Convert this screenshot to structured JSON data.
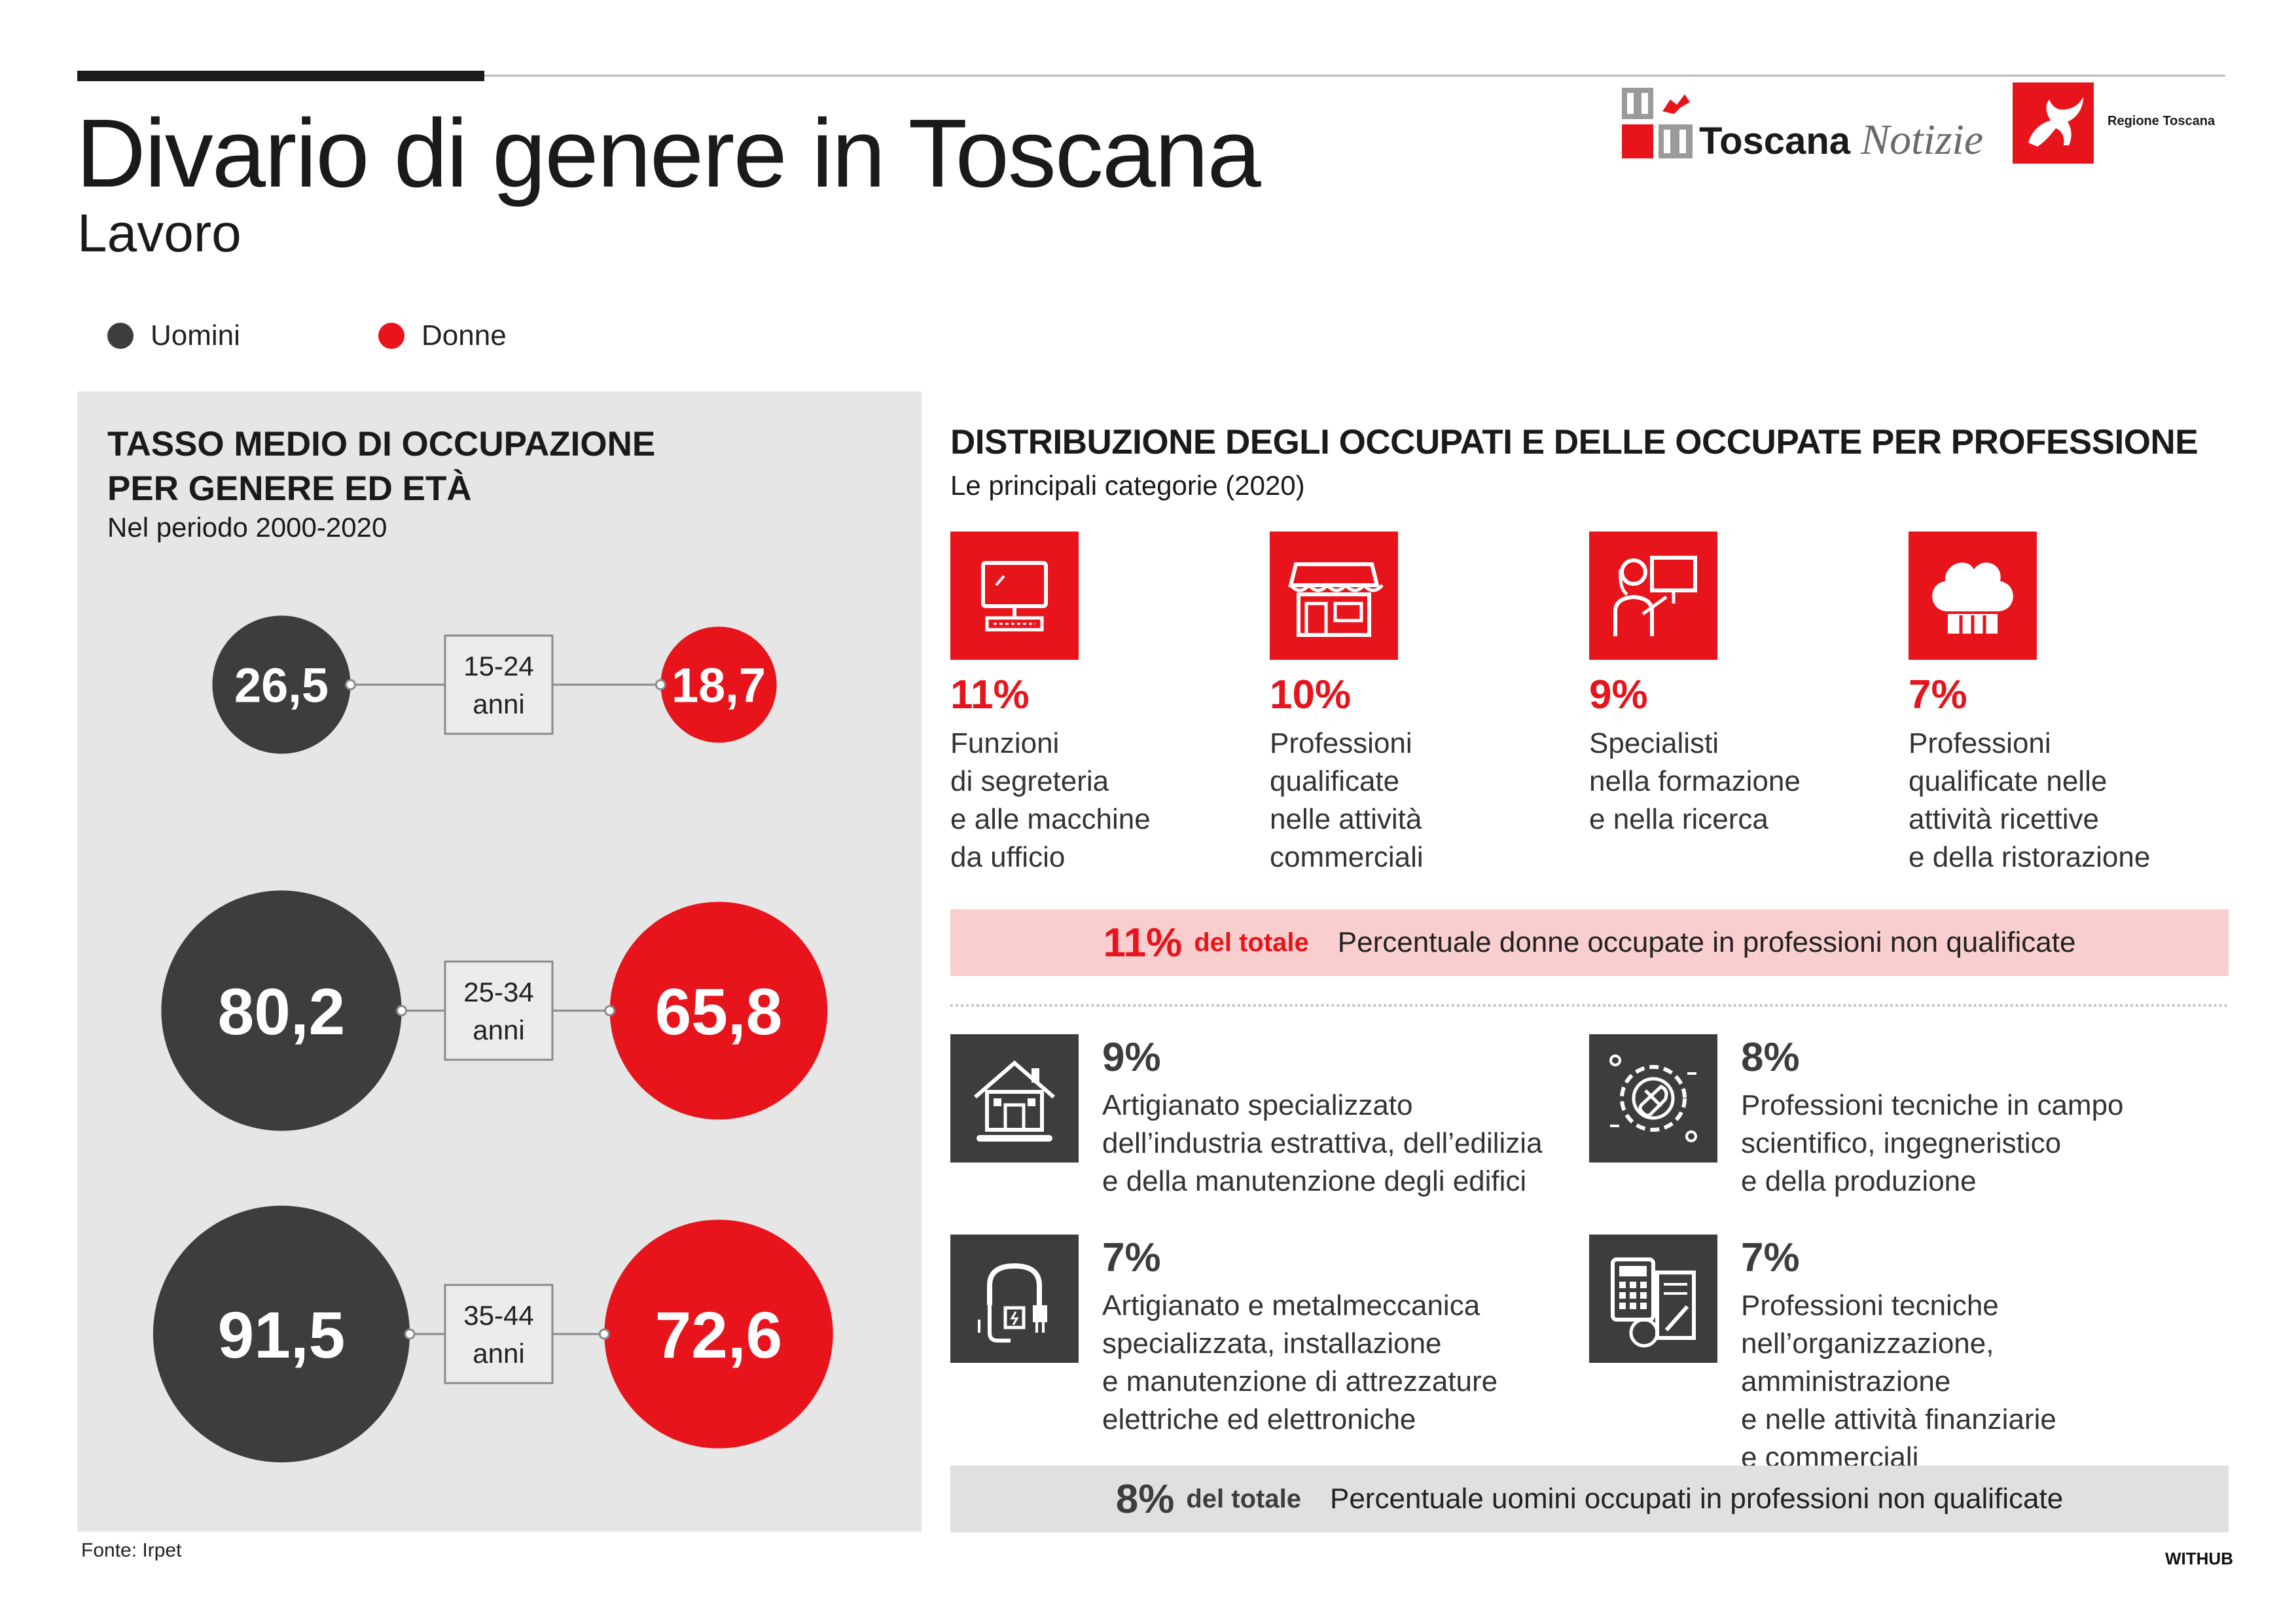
{
  "header": {
    "title": "Divario di genere in Toscana",
    "subtitle": "Lavoro",
    "logo_toscana_notizie": {
      "bold": "Toscana",
      "italic": "Notizie"
    },
    "logo_regione": "Regione Toscana"
  },
  "legend": [
    {
      "label": "Uomini",
      "color": "#3d3d3d"
    },
    {
      "label": "Donne",
      "color": "#e8141c"
    }
  ],
  "colors": {
    "men": "#3d3d3d",
    "women": "#e8141c",
    "panel": "#e6e6e6"
  },
  "left_panel": {
    "title_line1": "TASSO MEDIO DI OCCUPAZIONE",
    "title_line2": "PER GENERE ED ETÀ",
    "subtitle": "Nel periodo 2000-2020"
  },
  "chart_data": {
    "type": "bubble",
    "title": "TASSO MEDIO DI OCCUPAZIONE PER GENERE ED ETÀ",
    "subtitle": "Nel periodo 2000-2020",
    "categories": [
      {
        "range": "15-24",
        "unit": "anni"
      },
      {
        "range": "25-34",
        "unit": "anni"
      },
      {
        "range": "35-44",
        "unit": "anni"
      }
    ],
    "series": [
      {
        "name": "Uomini",
        "color": "#3d3d3d",
        "values": [
          26.5,
          80.2,
          91.5
        ],
        "labels": [
          "26,5",
          "80,2",
          "91,5"
        ]
      },
      {
        "name": "Donne",
        "color": "#e8141c",
        "values": [
          18.7,
          65.8,
          72.6
        ],
        "labels": [
          "18,7",
          "65,8",
          "72,6"
        ]
      }
    ]
  },
  "right_panel": {
    "title": "DISTRIBUZIONE DEGLI OCCUPATI E DELLE OCCUPATE PER PROFESSIONE",
    "subtitle": "Le principali categorie (2020)",
    "women_categories": [
      {
        "pct": "11%",
        "icon": "computer-icon",
        "lines": [
          "Funzioni",
          "di segreteria",
          "e alle macchine",
          "da ufficio"
        ]
      },
      {
        "pct": "10%",
        "icon": "shop-icon",
        "lines": [
          "Professioni",
          "qualificate",
          "nelle attività",
          "commerciali"
        ]
      },
      {
        "pct": "9%",
        "icon": "teacher-icon",
        "lines": [
          "Specialisti",
          "nella formazione",
          "e nella ricerca"
        ]
      },
      {
        "pct": "7%",
        "icon": "chef-hat-icon",
        "lines": [
          "Professioni",
          "qualificate nelle",
          "attività ricettive",
          "e della ristorazione"
        ]
      }
    ],
    "women_band": {
      "pct": "11%",
      "del_totale": "del totale",
      "text": "Percentuale donne occupate in professioni non qualificate"
    },
    "men_categories": [
      {
        "pct": "9%",
        "icon": "house-tools-icon",
        "lines": [
          "Artigianato specializzato",
          "dell’industria estrattiva, dell’edilizia",
          "e della manutenzione degli edifici"
        ]
      },
      {
        "pct": "8%",
        "icon": "gear-wrench-icon",
        "lines": [
          "Professioni tecniche in campo",
          "scientifico, ingegneristico",
          "e della produzione"
        ]
      },
      {
        "pct": "7%",
        "icon": "cable-plug-icon",
        "lines": [
          "Artigianato e metalmeccanica",
          "specializzata, installazione",
          "e manutenzione di attrezzature",
          "elettriche ed elettroniche"
        ]
      },
      {
        "pct": "7%",
        "icon": "calculator-document-icon",
        "lines": [
          "Professioni tecniche",
          "nell’organizzazione, amministrazione",
          "e nelle attività finanziarie",
          "e commerciali"
        ]
      }
    ],
    "men_band": {
      "pct": "8%",
      "del_totale": "del totale",
      "text": "Percentuale uomini occupati in professioni non qualificate"
    }
  },
  "footer": {
    "source": "Fonte: Irpet",
    "credit": "WITHUB"
  }
}
